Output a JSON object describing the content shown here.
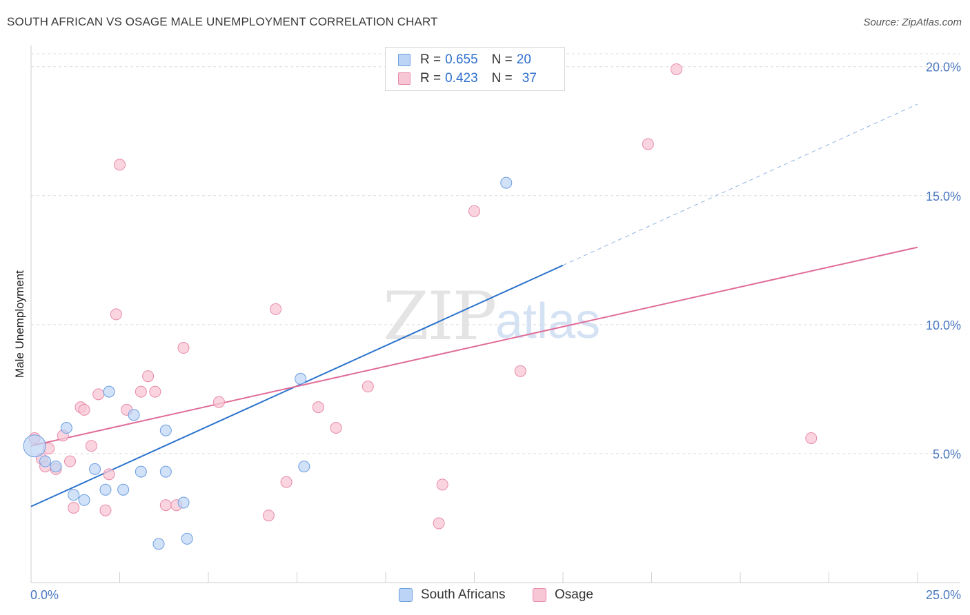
{
  "title": "SOUTH AFRICAN VS OSAGE MALE UNEMPLOYMENT CORRELATION CHART",
  "source": "Source: ZipAtlas.com",
  "watermark": {
    "zip": "ZIP",
    "atlas": "atlas"
  },
  "legend": {
    "rows": [
      {
        "r_label": "R =",
        "r_value": "0.655",
        "n_label": "N =",
        "n_value": "20"
      },
      {
        "r_label": "R =",
        "r_value": "0.423",
        "n_label": "N =",
        "n_value": "37"
      }
    ]
  },
  "bottom_legend": {
    "south_africans": "South Africans",
    "osage": "Osage"
  },
  "chart_data": {
    "type": "scatter",
    "title": "SOUTH AFRICAN VS OSAGE MALE UNEMPLOYMENT CORRELATION CHART",
    "xlabel": "",
    "ylabel": "Male Unemployment",
    "xlim": [
      0,
      25
    ],
    "ylim": [
      0,
      20.5
    ],
    "x_tick_labels": [
      "0.0%",
      "25.0%"
    ],
    "y_ticks": [
      5,
      10,
      15,
      20
    ],
    "y_tick_labels": [
      "5.0%",
      "10.0%",
      "15.0%",
      "20.0%"
    ],
    "colors": {
      "south_africans": "#6b9de0",
      "south_africans_fill": "#bcd4f5",
      "osage": "#e889a8",
      "osage_fill": "#f8c7d6",
      "blue_line": "#2a72cc",
      "pink_line": "#e06b98",
      "tick_text": "#4a78c2"
    },
    "series": [
      {
        "name": "South Africans",
        "points": [
          [
            0.1,
            5.3
          ],
          [
            0.4,
            4.7
          ],
          [
            0.7,
            4.5
          ],
          [
            1.0,
            6.0
          ],
          [
            1.2,
            3.4
          ],
          [
            1.5,
            3.2
          ],
          [
            1.8,
            4.4
          ],
          [
            2.1,
            3.6
          ],
          [
            2.2,
            7.4
          ],
          [
            2.6,
            3.6
          ],
          [
            2.9,
            6.5
          ],
          [
            3.1,
            4.3
          ],
          [
            3.6,
            1.5
          ],
          [
            3.8,
            5.9
          ],
          [
            3.8,
            4.3
          ],
          [
            4.3,
            3.1
          ],
          [
            4.4,
            1.7
          ],
          [
            7.6,
            7.9
          ],
          [
            7.7,
            4.5
          ],
          [
            13.4,
            15.5
          ]
        ],
        "trend": {
          "x": [
            0,
            15
          ],
          "y": [
            2.95,
            12.3
          ],
          "dashed_to": [
            25,
            18.55
          ]
        }
      },
      {
        "name": "Osage",
        "points": [
          [
            0.1,
            5.6
          ],
          [
            0.3,
            4.8
          ],
          [
            0.4,
            4.5
          ],
          [
            0.5,
            5.2
          ],
          [
            0.7,
            4.4
          ],
          [
            0.9,
            5.7
          ],
          [
            1.1,
            4.7
          ],
          [
            1.2,
            2.9
          ],
          [
            1.4,
            6.8
          ],
          [
            1.5,
            6.7
          ],
          [
            1.7,
            5.3
          ],
          [
            1.9,
            7.3
          ],
          [
            2.1,
            2.8
          ],
          [
            2.2,
            4.2
          ],
          [
            2.4,
            10.4
          ],
          [
            2.5,
            16.2
          ],
          [
            2.7,
            6.7
          ],
          [
            3.1,
            7.4
          ],
          [
            3.3,
            8.0
          ],
          [
            3.5,
            7.4
          ],
          [
            3.8,
            3.0
          ],
          [
            4.1,
            3.0
          ],
          [
            4.3,
            9.1
          ],
          [
            5.3,
            7.0
          ],
          [
            6.7,
            2.6
          ],
          [
            6.9,
            10.6
          ],
          [
            7.2,
            3.9
          ],
          [
            8.1,
            6.8
          ],
          [
            8.6,
            6.0
          ],
          [
            9.5,
            7.6
          ],
          [
            11.5,
            2.3
          ],
          [
            11.6,
            3.8
          ],
          [
            12.5,
            14.4
          ],
          [
            13.8,
            8.2
          ],
          [
            17.4,
            17.0
          ],
          [
            18.2,
            19.9
          ],
          [
            22.0,
            5.6
          ]
        ],
        "trend": {
          "x": [
            0,
            25
          ],
          "y": [
            5.3,
            13.0
          ]
        }
      }
    ]
  }
}
